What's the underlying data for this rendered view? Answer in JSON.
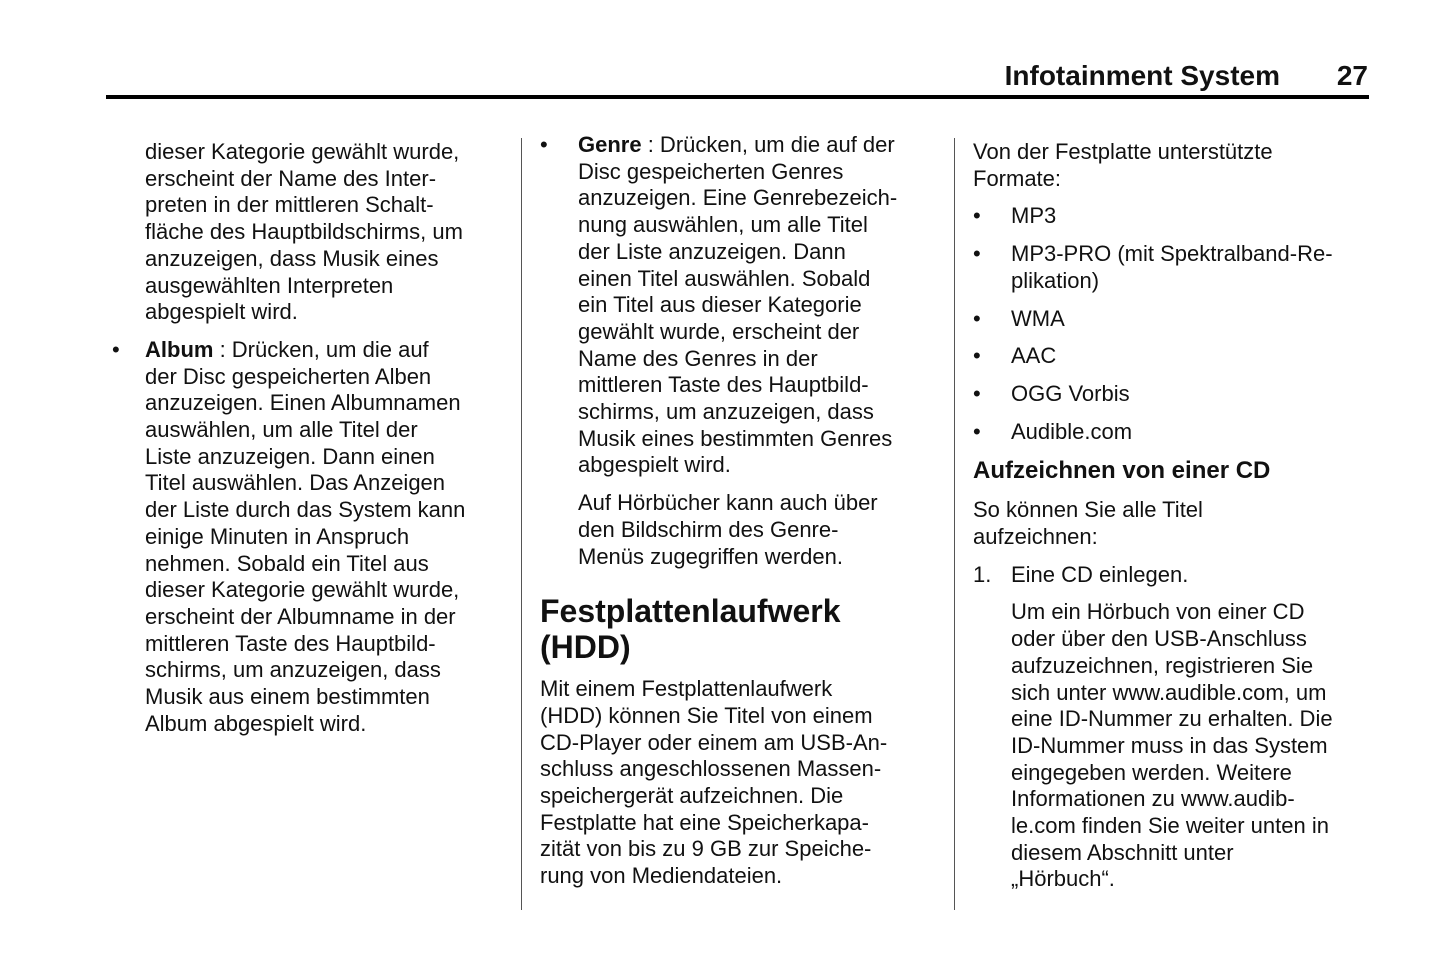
{
  "header": {
    "title": "Infotainment System",
    "page_number": "27"
  },
  "columns": [
    {
      "blocks": [
        {
          "type": "para",
          "indent": true,
          "lines": [
            "dieser Kategorie gewählt wurde,",
            "erscheint der Name des Inter-",
            "preten in der mittleren Schalt-",
            "fläche des Hauptbildschirms, um",
            "anzuzeigen, dass Musik eines",
            "ausgewählten Interpreten",
            "abgespielt wird."
          ]
        },
        {
          "type": "bullet",
          "marker": "•",
          "lead": "Album",
          "lines": [
            " : Drücken, um die auf",
            "der Disc gespeicherten Alben",
            "anzuzeigen. Einen Albumnamen",
            "auswählen, um alle Titel der",
            "Liste anzuzeigen. Dann einen",
            "Titel auswählen. Das Anzeigen",
            "der Liste durch das System kann",
            "einige Minuten in Anspruch",
            "nehmen. Sobald ein Titel aus",
            "dieser Kategorie gewählt wurde,",
            "erscheint der Albumname in der",
            "mittleren Taste des Hauptbild-",
            "schirms, um anzuzeigen, dass",
            "Musik aus einem bestimmten",
            "Album abgespielt wird."
          ]
        }
      ]
    },
    {
      "blocks": [
        {
          "type": "bullet",
          "marker": "•",
          "lead": "Genre",
          "lines": [
            " : Drücken, um die auf der",
            "Disc gespeicherten Genres",
            "anzuzeigen. Eine Genrebezeich-",
            "nung auswählen, um alle Titel",
            "der Liste anzuzeigen. Dann",
            "einen Titel auswählen. Sobald",
            "ein Titel aus dieser Kategorie",
            "gewählt wurde, erscheint der",
            "Name des Genres in der",
            "mittleren Taste des Hauptbild-",
            "schirms, um anzuzeigen, dass",
            "Musik eines bestimmten Genres",
            "abgespielt wird."
          ]
        },
        {
          "type": "para",
          "indent": true,
          "lines": [
            "Auf Hörbücher kann auch über",
            "den Bildschirm des Genre-",
            "Menüs zugegriffen werden."
          ]
        },
        {
          "type": "heading-l",
          "lines": [
            "Festplattenlaufwerk",
            "(HDD)"
          ]
        },
        {
          "type": "para",
          "lines": [
            "Mit einem Festplattenlaufwerk",
            "(HDD) können Sie Titel von einem",
            "CD-Player oder einem am USB-An-",
            "schluss angeschlossenen Massen-",
            "speichergerät aufzeichnen. Die",
            "Festplatte hat eine Speicherkapa-",
            "zität von bis zu 9 GB zur Speiche-",
            "rung von Mediendateien."
          ]
        }
      ]
    },
    {
      "blocks": [
        {
          "type": "para",
          "lines": [
            "Von der Festplatte unterstützte",
            "Formate:"
          ]
        },
        {
          "type": "bullet",
          "marker": "•",
          "lines": [
            "MP3"
          ]
        },
        {
          "type": "bullet",
          "marker": "•",
          "lines": [
            "MP3-PRO (mit Spektralband-Re-",
            "plikation)"
          ]
        },
        {
          "type": "bullet",
          "marker": "•",
          "lines": [
            "WMA"
          ]
        },
        {
          "type": "bullet",
          "marker": "•",
          "lines": [
            "AAC"
          ]
        },
        {
          "type": "bullet",
          "marker": "•",
          "lines": [
            "OGG Vorbis"
          ]
        },
        {
          "type": "bullet",
          "marker": "•",
          "lines": [
            "Audible.com"
          ]
        },
        {
          "type": "heading-m",
          "lines": [
            "Aufzeichnen von einer CD"
          ]
        },
        {
          "type": "para",
          "lines": [
            "So können Sie alle Titel",
            "aufzeichnen:"
          ]
        },
        {
          "type": "bullet",
          "marker": "1.",
          "lines": [
            "Eine CD einlegen."
          ]
        },
        {
          "type": "para",
          "indent": true,
          "lines": [
            "Um ein Hörbuch von einer CD",
            "oder über den USB-Anschluss",
            "aufzuzeichnen, registrieren Sie",
            "sich unter www.audible.com, um",
            "eine ID-Nummer zu erhalten. Die",
            "ID-Nummer muss in das System",
            "eingegeben werden. Weitere",
            "Informationen zu www.audib-",
            "le.com finden Sie weiter unten in",
            "diesem Abschnitt unter",
            "„Hörbuch“."
          ]
        }
      ]
    }
  ]
}
